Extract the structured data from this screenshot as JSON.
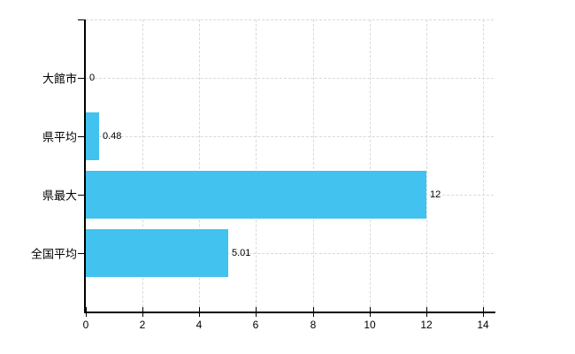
{
  "chart_data": {
    "type": "bar",
    "orientation": "horizontal",
    "title": "",
    "xlabel": "",
    "ylabel": "",
    "categories": [
      "大館市",
      "県平均",
      "県最大",
      "全国平均"
    ],
    "values": [
      0,
      0.48,
      12,
      5.01
    ],
    "value_labels": [
      "0",
      "0.48",
      "12",
      "5.01"
    ],
    "x_ticks": [
      0,
      2,
      4,
      6,
      8,
      10,
      12,
      14
    ],
    "x_tick_labels": [
      "0",
      "2",
      "4",
      "6",
      "8",
      "10",
      "12",
      "14"
    ],
    "xlim": [
      0,
      14
    ],
    "grid": true,
    "legend": false,
    "colors": {
      "bar": "#41C2EF",
      "grid": "#d9d9d9",
      "axis": "#000000",
      "text": "#000000",
      "background": "#ffffff"
    }
  }
}
